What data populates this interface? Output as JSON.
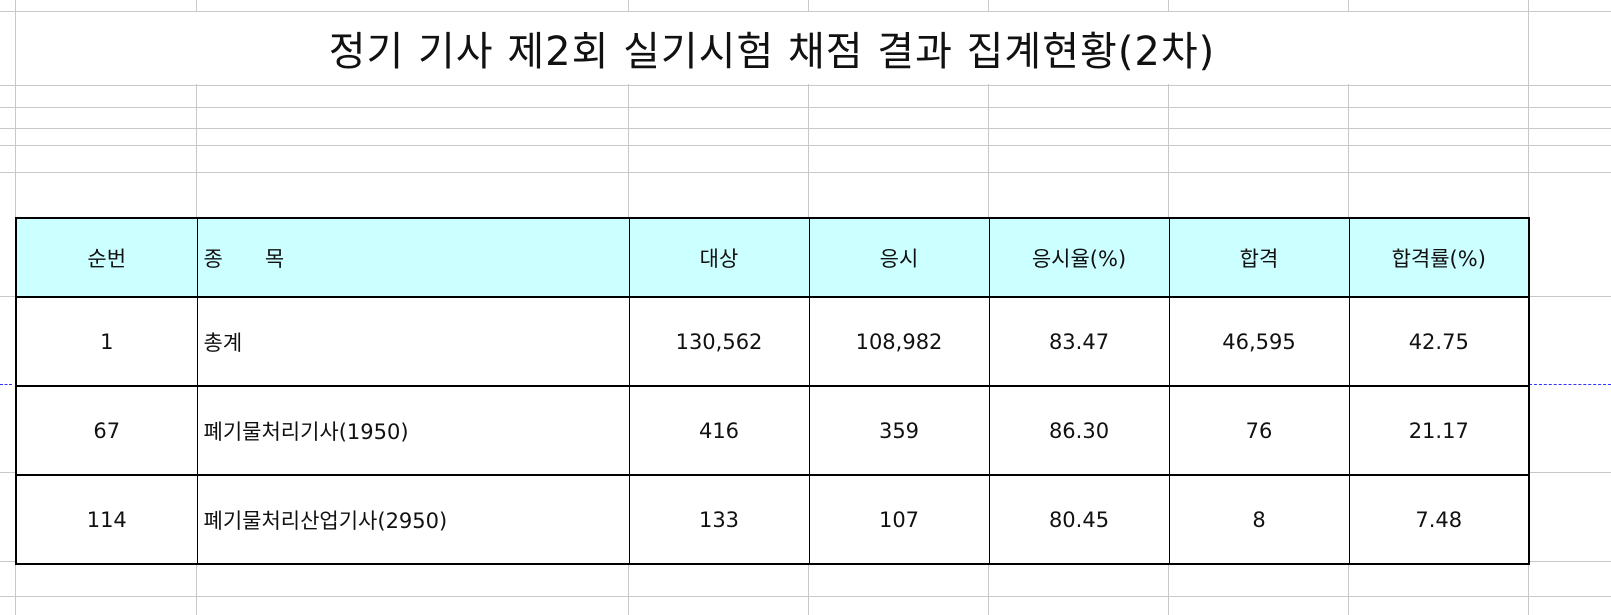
{
  "title": "정기 기사 제2회 실기시험 채점 결과 집계현황(2차)",
  "table": {
    "header_color": "#ccffff",
    "columns": [
      "순번",
      "종　　목",
      "대상",
      "응시",
      "응시율(%)",
      "합격",
      "합격률(%)"
    ],
    "rows": [
      [
        "1",
        "총계",
        "130,562",
        "108,982",
        "83.47",
        "46,595",
        "42.75"
      ],
      [
        "67",
        "폐기물처리기사(1950)",
        "416",
        "359",
        "86.30",
        "76",
        "21.17"
      ],
      [
        "114",
        "폐기물처리산업기사(2950)",
        "133",
        "107",
        "80.45",
        "8",
        "7.48"
      ]
    ]
  }
}
